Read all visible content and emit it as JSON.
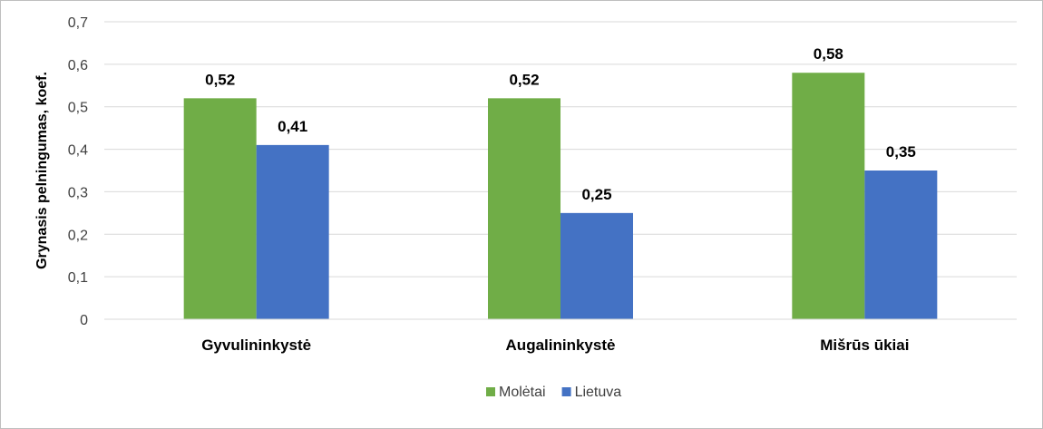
{
  "chart_data": {
    "type": "bar",
    "title": "",
    "xlabel": "",
    "ylabel": "Grynasis pelningumas, koef.",
    "categories": [
      "Gyvulininkystė",
      "Augalininkystė",
      "Mišrūs ūkiai"
    ],
    "series": [
      {
        "name": "Molėtai",
        "values": [
          0.52,
          0.52,
          0.58
        ],
        "labels": [
          "0,52",
          "0,52",
          "0,58"
        ],
        "color": "#70ad47"
      },
      {
        "name": "Lietuva",
        "values": [
          0.41,
          0.25,
          0.35
        ],
        "labels": [
          "0,41",
          "0,25",
          "0,35"
        ],
        "color": "#4472c4"
      }
    ],
    "ylim": [
      0,
      0.7
    ],
    "yticks": [
      0,
      0.1,
      0.2,
      0.3,
      0.4,
      0.5,
      0.6,
      0.7
    ],
    "ytick_labels": [
      "0",
      "0,1",
      "0,2",
      "0,3",
      "0,4",
      "0,5",
      "0,6",
      "0,7"
    ],
    "grid": true,
    "legend_position": "bottom"
  }
}
